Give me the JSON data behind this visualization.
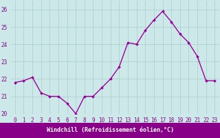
{
  "x": [
    0,
    1,
    2,
    3,
    4,
    5,
    6,
    7,
    8,
    9,
    10,
    11,
    12,
    13,
    14,
    15,
    16,
    17,
    18,
    19,
    20,
    21,
    22,
    23
  ],
  "y": [
    21.8,
    21.9,
    22.1,
    21.2,
    21.0,
    21.0,
    20.6,
    20.0,
    21.0,
    21.0,
    21.5,
    22.0,
    22.7,
    24.1,
    24.0,
    24.8,
    25.4,
    25.9,
    25.3,
    24.6,
    24.1,
    23.3,
    21.9,
    21.9
  ],
  "line_color": "#990099",
  "marker": "D",
  "marker_size": 2.0,
  "background_color": "#cce8e8",
  "grid_color": "#aacccc",
  "xlabel": "Windchill (Refroidissement éolien,°C)",
  "xlabel_bg": "#880088",
  "xlabel_fg": "#ffffff",
  "ylim": [
    20,
    26.5
  ],
  "xlim": [
    -0.5,
    23.5
  ],
  "yticks": [
    20,
    21,
    22,
    23,
    24,
    25,
    26
  ],
  "xticks": [
    0,
    1,
    2,
    3,
    4,
    5,
    6,
    7,
    8,
    9,
    10,
    11,
    12,
    13,
    14,
    15,
    16,
    17,
    18,
    19,
    20,
    21,
    22,
    23
  ],
  "tick_fontsize": 5.5,
  "xlabel_fontsize": 6.0,
  "line_width": 1.0
}
